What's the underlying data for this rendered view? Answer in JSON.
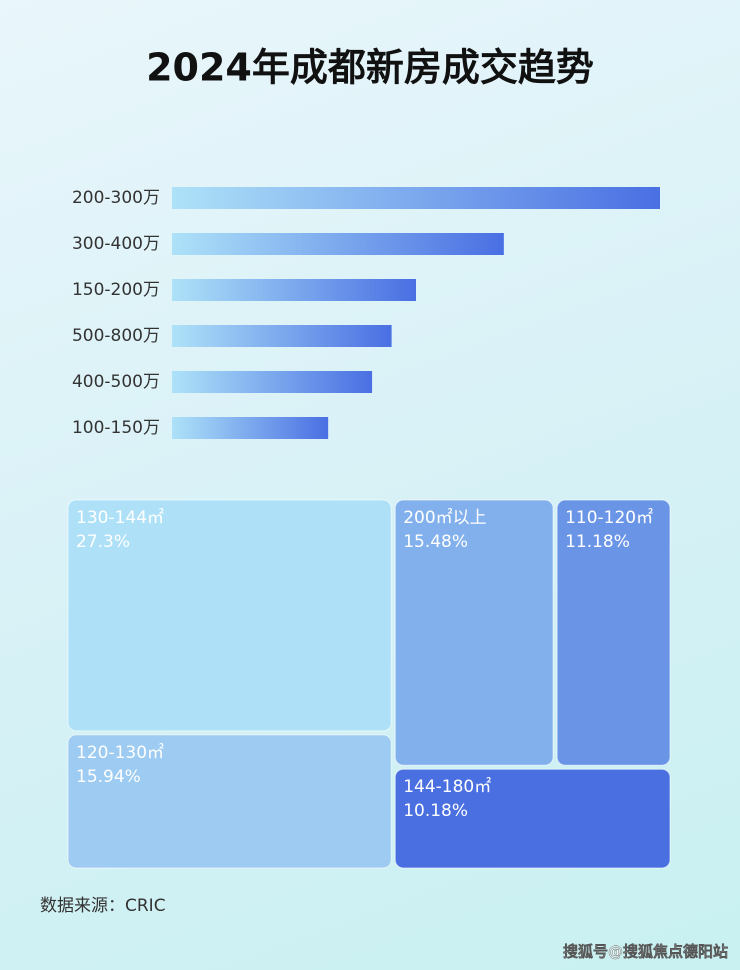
{
  "title": "2024年成都新房成交趋势",
  "source": "数据来源：CRIC",
  "watermark": "搜狐号@搜狐焦点德阳站",
  "chart_data": [
    {
      "type": "bar",
      "orientation": "horizontal",
      "categories": [
        "200-300万",
        "300-400万",
        "150-200万",
        "500-800万",
        "400-500万",
        "100-150万"
      ],
      "values": [
        100,
        68,
        50,
        45,
        41,
        32
      ],
      "xlim": [
        0,
        100
      ],
      "colors": [
        "#aee2f8",
        "#4a6fe3"
      ]
    },
    {
      "type": "treemap",
      "categories": [
        "130-144㎡",
        "120-130㎡",
        "200㎡以上",
        "110-120㎡",
        "144-180㎡"
      ],
      "values": [
        27.3,
        15.94,
        15.48,
        11.18,
        10.18
      ],
      "value_labels": [
        "27.3%",
        "15.94%",
        "15.48%",
        "11.18%",
        "10.18%"
      ],
      "colors": [
        "#aee1f8",
        "#9dcbf1",
        "#82b0ec",
        "#6a95e7",
        "#4a6fe0"
      ]
    }
  ]
}
